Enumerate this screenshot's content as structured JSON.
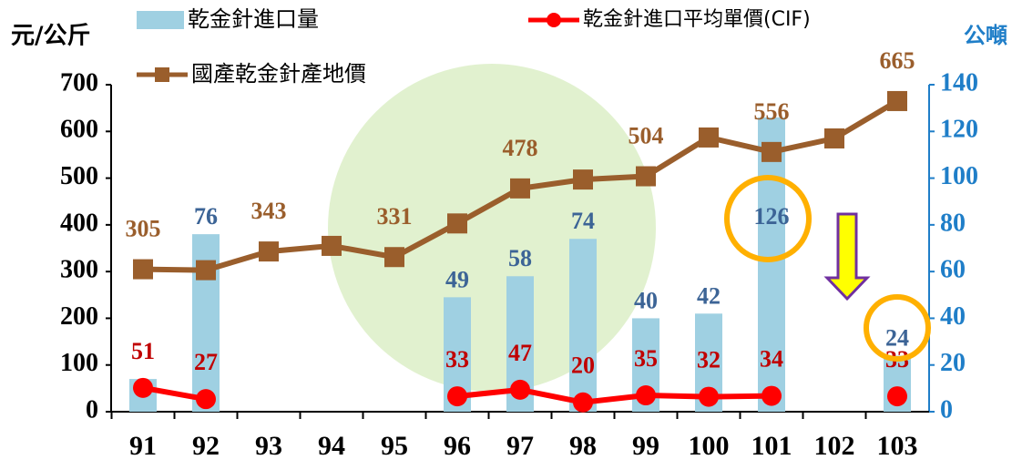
{
  "chart_data": {
    "type": "bar",
    "y_label": "元/公斤",
    "y2_label": "公噸",
    "categories": [
      "91",
      "92",
      "93",
      "94",
      "95",
      "96",
      "97",
      "98",
      "99",
      "100",
      "101",
      "102",
      "103"
    ],
    "ylim": [
      0,
      700
    ],
    "yticks": [
      0,
      100,
      200,
      300,
      400,
      500,
      600,
      700
    ],
    "y2lim": [
      0,
      140
    ],
    "y2ticks": [
      0,
      20,
      40,
      60,
      80,
      100,
      120,
      140
    ],
    "series": [
      {
        "name": "乾金針進口量",
        "type": "bar",
        "axis": "y2",
        "color": "#9fd0e2",
        "values": [
          14,
          76,
          null,
          null,
          null,
          49,
          58,
          74,
          40,
          42,
          126,
          null,
          24
        ],
        "value_labels": [
          null,
          "76",
          null,
          null,
          null,
          "49",
          "58",
          "74",
          "40",
          "42",
          "126",
          null,
          "24"
        ]
      },
      {
        "name": "乾金針進口平均單價(CIF)",
        "type": "line",
        "color": "#ff0000",
        "values": [
          51,
          27,
          null,
          null,
          null,
          33,
          47,
          20,
          35,
          32,
          34,
          null,
          33
        ],
        "value_labels": [
          "51",
          "27",
          null,
          null,
          null,
          "33",
          "47",
          "20",
          "35",
          "32",
          "34",
          null,
          "33"
        ]
      },
      {
        "name": "國產乾金針產地價",
        "type": "line",
        "color": "#9a5e2c",
        "values": [
          305,
          303,
          343,
          355,
          331,
          403,
          478,
          497,
          504,
          587,
          556,
          585,
          665
        ],
        "value_labels": [
          "305",
          null,
          "343",
          null,
          "331",
          null,
          "478",
          null,
          "504",
          null,
          "556",
          null,
          "665"
        ]
      }
    ]
  }
}
